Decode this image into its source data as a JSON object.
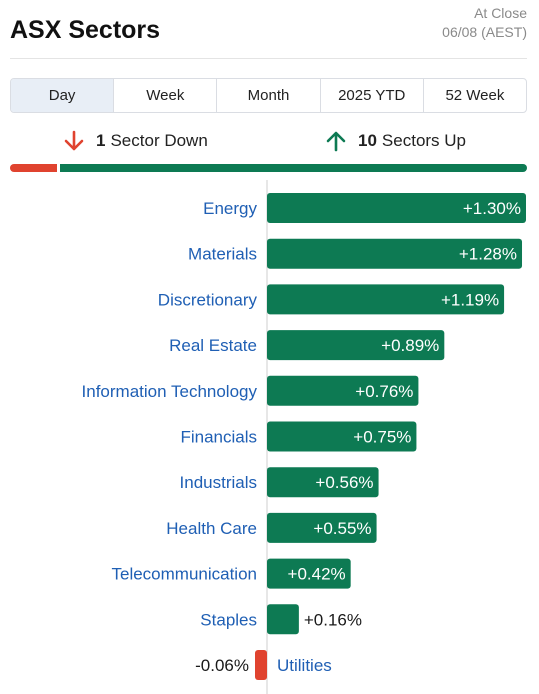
{
  "header": {
    "title": "ASX Sectors",
    "status": "At Close",
    "date": "06/08 (AEST)"
  },
  "tabs": [
    {
      "label": "Day",
      "active": true
    },
    {
      "label": "Week",
      "active": false
    },
    {
      "label": "Month",
      "active": false
    },
    {
      "label": "2025 YTD",
      "active": false
    },
    {
      "label": "52 Week",
      "active": false
    }
  ],
  "summary": {
    "down_count": "1",
    "down_label": "Sector Down",
    "up_count": "10",
    "up_label": "Sectors Up"
  },
  "colors": {
    "up": "#0d7a53",
    "down": "#e0432f",
    "label": "#1f5fb4"
  },
  "chart_data": {
    "type": "bar",
    "orientation": "horizontal",
    "categories": [
      "Energy",
      "Materials",
      "Discretionary",
      "Real Estate",
      "Information Technology",
      "Financials",
      "Industrials",
      "Health Care",
      "Telecommunication",
      "Staples",
      "Utilities"
    ],
    "values": [
      1.3,
      1.28,
      1.19,
      0.89,
      0.76,
      0.75,
      0.56,
      0.55,
      0.42,
      0.16,
      -0.06
    ],
    "labels": [
      "+1.30%",
      "+1.28%",
      "+1.19%",
      "+0.89%",
      "+0.76%",
      "+0.75%",
      "+0.56%",
      "+0.55%",
      "+0.42%",
      "+0.16%",
      "-0.06%"
    ],
    "unit": "%"
  }
}
